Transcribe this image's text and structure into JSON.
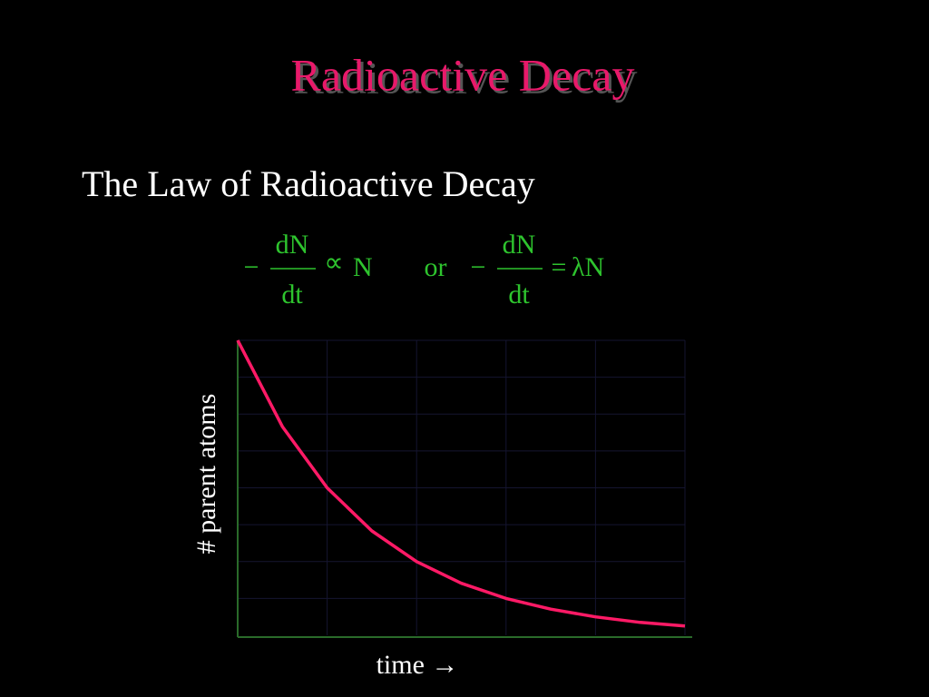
{
  "title": "Radioactive Decay",
  "subtitle": "The Law of Radioactive Decay",
  "equations": [
    {
      "sign": "−",
      "numerator": "dN",
      "denominator": "dt",
      "relation": "∝",
      "right": "N"
    },
    {
      "sign": "−",
      "numerator": "dN",
      "denominator": "dt",
      "relation": "=",
      "right": "λN"
    }
  ],
  "connector": "or",
  "chart_data": {
    "type": "line",
    "xlabel": "time →",
    "ylabel": "# parent atoms",
    "x": [
      0,
      0.5,
      1,
      1.5,
      2,
      2.5,
      3,
      3.5,
      4,
      4.5,
      5
    ],
    "series": [
      {
        "color": "#ff1a66",
        "values": [
          8,
          5.66,
          4,
          2.83,
          2,
          1.41,
          1,
          0.71,
          0.5,
          0.35,
          0.25
        ]
      }
    ],
    "xlim": [
      0,
      5
    ],
    "ylim": [
      0,
      8
    ],
    "grid": true
  }
}
